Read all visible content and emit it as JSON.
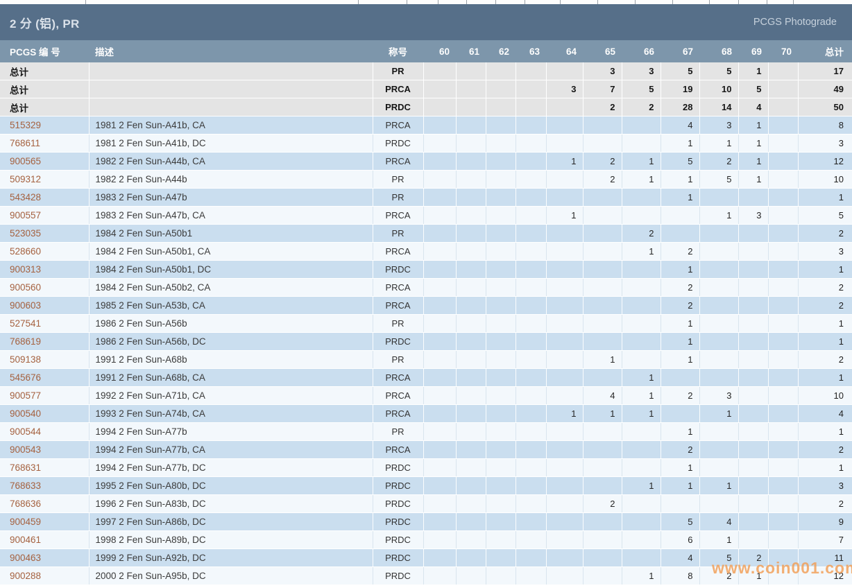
{
  "header": {
    "title": "2 分 (铝), PR",
    "photograde_label": "PCGS Photograde"
  },
  "watermark": {
    "text": "www.coin001.com"
  },
  "colors": {
    "title_bar": "#566f89",
    "table_header": "#7d96ab",
    "total_row": "#e4e4e4",
    "row_blue": "#cadeef",
    "row_white": "#f3f8fc",
    "number_link": "#a5613f",
    "watermark_orange": "#f19e54"
  },
  "table": {
    "headers": {
      "id": "PCGS 编 号",
      "desc": "描述",
      "designation": "称号",
      "grades": [
        "60",
        "61",
        "62",
        "63",
        "64",
        "65",
        "66",
        "67",
        "68",
        "69",
        "70"
      ],
      "total": "总计"
    },
    "total_label": "总计",
    "totals": [
      {
        "designation": "PR",
        "grades": [
          "",
          "",
          "",
          "",
          "",
          "3",
          "3",
          "5",
          "5",
          "1",
          ""
        ],
        "total": "17"
      },
      {
        "designation": "PRCA",
        "grades": [
          "",
          "",
          "",
          "",
          "3",
          "7",
          "5",
          "19",
          "10",
          "5",
          ""
        ],
        "total": "49"
      },
      {
        "designation": "PRDC",
        "grades": [
          "",
          "",
          "",
          "",
          "",
          "2",
          "2",
          "28",
          "14",
          "4",
          ""
        ],
        "total": "50"
      }
    ],
    "rows": [
      {
        "number": "515329",
        "description": "1981 2 Fen Sun-A41b, CA",
        "designation": "PRCA",
        "grades": [
          "",
          "",
          "",
          "",
          "",
          "",
          "",
          "4",
          "3",
          "1",
          ""
        ],
        "total": "8"
      },
      {
        "number": "768611",
        "description": "1981 2 Fen Sun-A41b, DC",
        "designation": "PRDC",
        "grades": [
          "",
          "",
          "",
          "",
          "",
          "",
          "",
          "1",
          "1",
          "1",
          ""
        ],
        "total": "3"
      },
      {
        "number": "900565",
        "description": "1982 2 Fen Sun-A44b, CA",
        "designation": "PRCA",
        "grades": [
          "",
          "",
          "",
          "",
          "1",
          "2",
          "1",
          "5",
          "2",
          "1",
          ""
        ],
        "total": "12"
      },
      {
        "number": "509312",
        "description": "1982 2 Fen Sun-A44b",
        "designation": "PR",
        "grades": [
          "",
          "",
          "",
          "",
          "",
          "2",
          "1",
          "1",
          "5",
          "1",
          ""
        ],
        "total": "10"
      },
      {
        "number": "543428",
        "description": "1983 2 Fen Sun-A47b",
        "designation": "PR",
        "grades": [
          "",
          "",
          "",
          "",
          "",
          "",
          "",
          "1",
          "",
          "",
          ""
        ],
        "total": "1"
      },
      {
        "number": "900557",
        "description": "1983 2 Fen Sun-A47b, CA",
        "designation": "PRCA",
        "grades": [
          "",
          "",
          "",
          "",
          "1",
          "",
          "",
          "",
          "1",
          "3",
          ""
        ],
        "total": "5"
      },
      {
        "number": "523035",
        "description": "1984 2 Fen Sun-A50b1",
        "designation": "PR",
        "grades": [
          "",
          "",
          "",
          "",
          "",
          "",
          "2",
          "",
          "",
          "",
          ""
        ],
        "total": "2"
      },
      {
        "number": "528660",
        "description": "1984 2 Fen Sun-A50b1, CA",
        "designation": "PRCA",
        "grades": [
          "",
          "",
          "",
          "",
          "",
          "",
          "1",
          "2",
          "",
          "",
          ""
        ],
        "total": "3"
      },
      {
        "number": "900313",
        "description": "1984 2 Fen Sun-A50b1, DC",
        "designation": "PRDC",
        "grades": [
          "",
          "",
          "",
          "",
          "",
          "",
          "",
          "1",
          "",
          "",
          ""
        ],
        "total": "1"
      },
      {
        "number": "900560",
        "description": "1984 2 Fen Sun-A50b2, CA",
        "designation": "PRCA",
        "grades": [
          "",
          "",
          "",
          "",
          "",
          "",
          "",
          "2",
          "",
          "",
          ""
        ],
        "total": "2"
      },
      {
        "number": "900603",
        "description": "1985 2 Fen Sun-A53b, CA",
        "designation": "PRCA",
        "grades": [
          "",
          "",
          "",
          "",
          "",
          "",
          "",
          "2",
          "",
          "",
          ""
        ],
        "total": "2"
      },
      {
        "number": "527541",
        "description": "1986 2 Fen Sun-A56b",
        "designation": "PR",
        "grades": [
          "",
          "",
          "",
          "",
          "",
          "",
          "",
          "1",
          "",
          "",
          ""
        ],
        "total": "1"
      },
      {
        "number": "768619",
        "description": "1986 2 Fen Sun-A56b, DC",
        "designation": "PRDC",
        "grades": [
          "",
          "",
          "",
          "",
          "",
          "",
          "",
          "1",
          "",
          "",
          ""
        ],
        "total": "1"
      },
      {
        "number": "509138",
        "description": "1991 2 Fen Sun-A68b",
        "designation": "PR",
        "grades": [
          "",
          "",
          "",
          "",
          "",
          "1",
          "",
          "1",
          "",
          "",
          ""
        ],
        "total": "2"
      },
      {
        "number": "545676",
        "description": "1991 2 Fen Sun-A68b, CA",
        "designation": "PRCA",
        "grades": [
          "",
          "",
          "",
          "",
          "",
          "",
          "1",
          "",
          "",
          "",
          ""
        ],
        "total": "1"
      },
      {
        "number": "900577",
        "description": "1992 2 Fen Sun-A71b, CA",
        "designation": "PRCA",
        "grades": [
          "",
          "",
          "",
          "",
          "",
          "4",
          "1",
          "2",
          "3",
          "",
          ""
        ],
        "total": "10"
      },
      {
        "number": "900540",
        "description": "1993 2 Fen Sun-A74b, CA",
        "designation": "PRCA",
        "grades": [
          "",
          "",
          "",
          "",
          "1",
          "1",
          "1",
          "",
          "1",
          "",
          ""
        ],
        "total": "4"
      },
      {
        "number": "900544",
        "description": "1994 2 Fen Sun-A77b",
        "designation": "PR",
        "grades": [
          "",
          "",
          "",
          "",
          "",
          "",
          "",
          "1",
          "",
          "",
          ""
        ],
        "total": "1"
      },
      {
        "number": "900543",
        "description": "1994 2 Fen Sun-A77b, CA",
        "designation": "PRCA",
        "grades": [
          "",
          "",
          "",
          "",
          "",
          "",
          "",
          "2",
          "",
          "",
          ""
        ],
        "total": "2"
      },
      {
        "number": "768631",
        "description": "1994 2 Fen Sun-A77b, DC",
        "designation": "PRDC",
        "grades": [
          "",
          "",
          "",
          "",
          "",
          "",
          "",
          "1",
          "",
          "",
          ""
        ],
        "total": "1"
      },
      {
        "number": "768633",
        "description": "1995 2 Fen Sun-A80b, DC",
        "designation": "PRDC",
        "grades": [
          "",
          "",
          "",
          "",
          "",
          "",
          "1",
          "1",
          "1",
          "",
          ""
        ],
        "total": "3"
      },
      {
        "number": "768636",
        "description": "1996 2 Fen Sun-A83b, DC",
        "designation": "PRDC",
        "grades": [
          "",
          "",
          "",
          "",
          "",
          "2",
          "",
          "",
          "",
          "",
          ""
        ],
        "total": "2"
      },
      {
        "number": "900459",
        "description": "1997 2 Fen Sun-A86b, DC",
        "designation": "PRDC",
        "grades": [
          "",
          "",
          "",
          "",
          "",
          "",
          "",
          "5",
          "4",
          "",
          ""
        ],
        "total": "9"
      },
      {
        "number": "900461",
        "description": "1998 2 Fen Sun-A89b, DC",
        "designation": "PRDC",
        "grades": [
          "",
          "",
          "",
          "",
          "",
          "",
          "",
          "6",
          "1",
          "",
          ""
        ],
        "total": "7"
      },
      {
        "number": "900463",
        "description": "1999 2 Fen Sun-A92b, DC",
        "designation": "PRDC",
        "grades": [
          "",
          "",
          "",
          "",
          "",
          "",
          "",
          "4",
          "5",
          "2",
          ""
        ],
        "total": "11"
      },
      {
        "number": "900288",
        "description": "2000 2 Fen Sun-A95b, DC",
        "designation": "PRDC",
        "grades": [
          "",
          "",
          "",
          "",
          "",
          "",
          "1",
          "8",
          "2",
          "1",
          ""
        ],
        "total": "12"
      }
    ]
  }
}
